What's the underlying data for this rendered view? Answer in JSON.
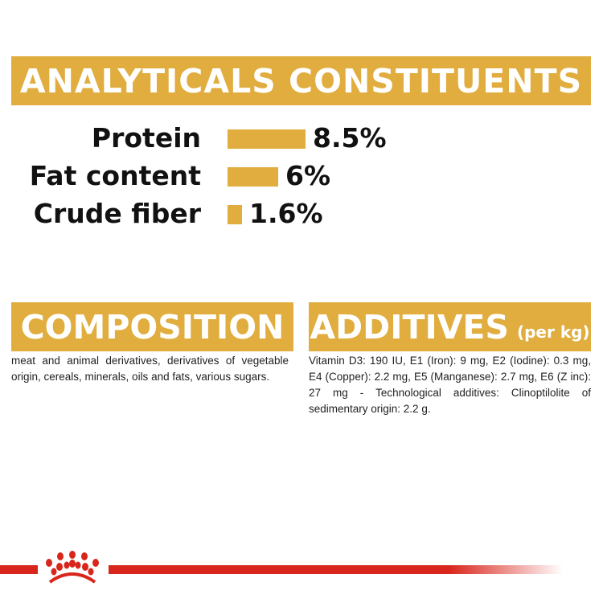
{
  "analyticals": {
    "title": "ANALYTICALS CONSTITUENTS",
    "rows": [
      {
        "label": "Protein",
        "value": "8.5%",
        "percent": 8.5
      },
      {
        "label": "Fat content",
        "value": "6%",
        "percent": 6
      },
      {
        "label": "Crude fiber",
        "value": "1.6%",
        "percent": 1.6
      }
    ]
  },
  "composition": {
    "title": "COMPOSITION",
    "text": "meat and animal derivatives, derivatives of vegetable origin, cereals, minerals, oils and fats, various sugars."
  },
  "additives": {
    "title": "ADDITIVES",
    "unit": "(per kg)",
    "text": "Vitamin D3: 190 IU, E1 (Iron): 9 mg, E2 (Iodine): 0.3 mg, E4 (Copper): 2.2 mg, E5 (Manganese): 2.7 mg, E6 (Z inc): 27 mg - Technological additives: Clinoptilolite of sedimentary origin: 2.2 g."
  },
  "colors": {
    "accent": "#e0ad3e",
    "brand_red": "#d9261c"
  },
  "logo": {
    "icon": "royal-canin-crown-icon"
  }
}
